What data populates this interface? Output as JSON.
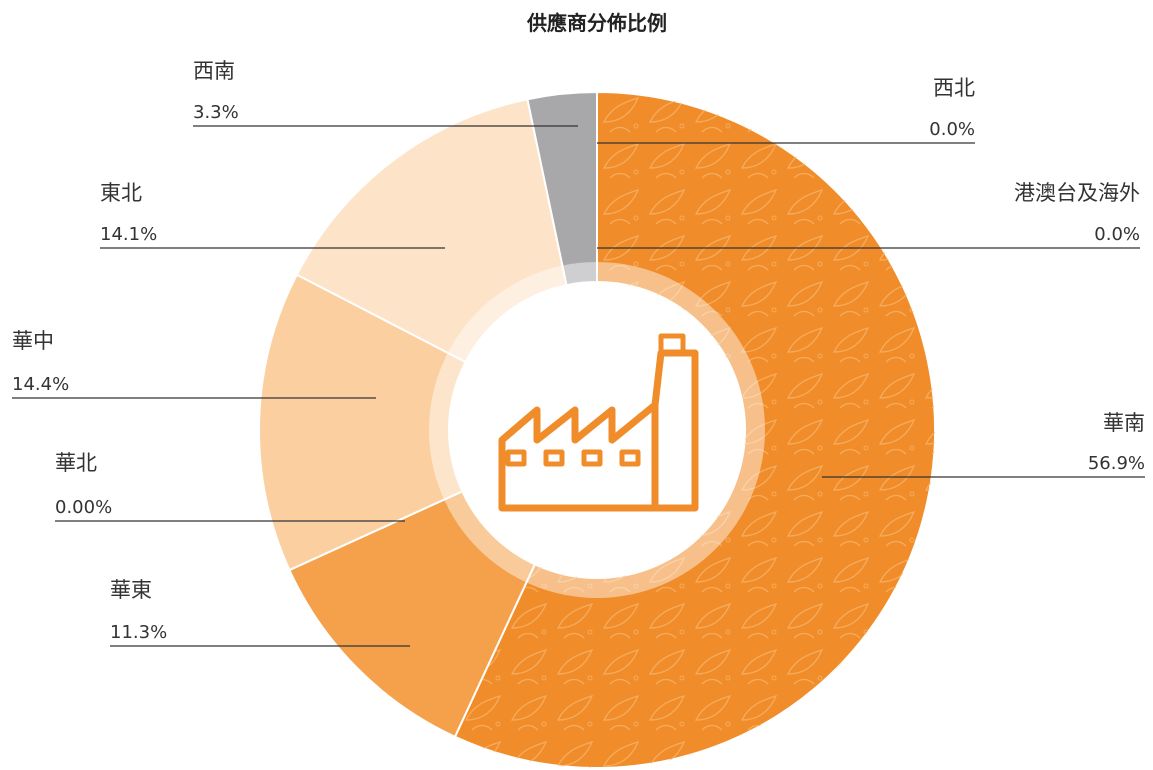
{
  "chart_data": {
    "type": "pie",
    "title": "供應商分佈比例",
    "categories": [
      "華南",
      "華東",
      "華北",
      "華中",
      "東北",
      "西南",
      "西北",
      "港澳台及海外"
    ],
    "values": [
      56.9,
      11.3,
      0,
      14.4,
      14.1,
      3.3,
      0,
      0
    ],
    "value_labels": [
      "56.9%",
      "11.3%",
      "0.00%",
      "14.4%",
      "14.1%",
      "3.3%",
      "0.0%",
      "0.0%"
    ],
    "colors": [
      "#f08d2a",
      "#f5a04a",
      "#f7b877",
      "#fbcfa0",
      "#fde3c8",
      "#a8a8ab",
      "#f08d2a",
      "#f08d2a"
    ],
    "donut": true
  }
}
